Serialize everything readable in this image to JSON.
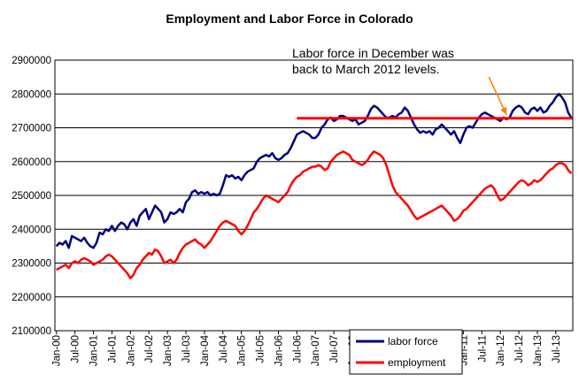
{
  "chart_data": {
    "type": "line",
    "title": "Employment and Labor Force in Colorado",
    "xlabel": "",
    "ylabel": "",
    "ylim": [
      2100000,
      2900000
    ],
    "yticks": [
      2100000,
      2200000,
      2300000,
      2400000,
      2500000,
      2600000,
      2700000,
      2800000,
      2900000
    ],
    "ytick_labels": [
      "2100000",
      "2200000",
      "2300000",
      "2400000",
      "2500000",
      "2600000",
      "2700000",
      "2800000",
      "2900000"
    ],
    "x_start": "Jan-00",
    "x_end": "Dec-13",
    "xtick_labels": [
      "Jan-00",
      "Jul-00",
      "Jan-01",
      "Jul-01",
      "Jan-02",
      "Jul-02",
      "Jan-03",
      "Jul-03",
      "Jan-04",
      "Jul-04",
      "Jan-05",
      "Jul-05",
      "Jan-06",
      "Jul-06",
      "Jan-07",
      "Jul-07",
      "Jan-08",
      "Jul-08",
      "Jan-09",
      "Jul-09",
      "Jan-10",
      "Jul-10",
      "Jan-11",
      "Jul-11",
      "Jan-12",
      "Jul-12",
      "Jan-13",
      "Jul-13"
    ],
    "grid": "horizontal",
    "legend_position": "bottom-right",
    "colors": {
      "labor_force": "#000080",
      "employment": "#ff0000",
      "reference": "#ff0000",
      "arrow": "#ff8000"
    },
    "series": [
      {
        "name": "labor force",
        "color": "#000080",
        "values": [
          [
            2000,
            2350000,
            2360000,
            2355000,
            2365000,
            2345000,
            2380000,
            2375000,
            2370000,
            2365000,
            2375000,
            2360000,
            2350000
          ],
          [
            2001,
            2345000,
            2360000,
            2390000,
            2385000,
            2400000,
            2395000,
            2410000,
            2395000,
            2410000,
            2420000,
            2415000,
            2400000
          ],
          [
            2002,
            2420000,
            2430000,
            2410000,
            2440000,
            2450000,
            2460000,
            2430000,
            2450000,
            2470000,
            2460000,
            2450000,
            2420000
          ],
          [
            2003,
            2430000,
            2450000,
            2445000,
            2450000,
            2460000,
            2450000,
            2480000,
            2490000,
            2510000,
            2515000,
            2505000,
            2510000
          ],
          [
            2004,
            2505000,
            2510000,
            2500000,
            2505000,
            2500000,
            2505000,
            2530000,
            2560000,
            2555000,
            2560000,
            2550000,
            2555000
          ],
          [
            2005,
            2545000,
            2560000,
            2570000,
            2575000,
            2580000,
            2600000,
            2610000,
            2615000,
            2620000,
            2615000,
            2625000,
            2610000
          ],
          [
            2006,
            2605000,
            2610000,
            2620000,
            2625000,
            2640000,
            2660000,
            2680000,
            2685000,
            2690000,
            2685000,
            2680000,
            2670000
          ],
          [
            2007,
            2670000,
            2680000,
            2700000,
            2710000,
            2725000,
            2730000,
            2720000,
            2725000,
            2735000,
            2735000,
            2730000,
            2725000
          ],
          [
            2008,
            2720000,
            2725000,
            2710000,
            2715000,
            2720000,
            2735000,
            2755000,
            2765000,
            2760000,
            2750000,
            2740000,
            2730000
          ],
          [
            2009,
            2730000,
            2735000,
            2730000,
            2740000,
            2745000,
            2760000,
            2750000,
            2730000,
            2710000,
            2695000,
            2685000,
            2690000
          ],
          [
            2010,
            2685000,
            2690000,
            2680000,
            2695000,
            2700000,
            2710000,
            2700000,
            2690000,
            2680000,
            2690000,
            2670000,
            2655000
          ],
          [
            2011,
            2680000,
            2700000,
            2705000,
            2700000,
            2715000,
            2730000,
            2740000,
            2745000,
            2740000,
            2735000,
            2730000,
            2725000
          ],
          [
            2012,
            2720000,
            2730000,
            2725000,
            2730000,
            2750000,
            2760000,
            2765000,
            2760000,
            2745000,
            2740000,
            2755000,
            2760000
          ],
          [
            2013,
            2750000,
            2760000,
            2745000,
            2750000,
            2765000,
            2775000,
            2790000,
            2800000,
            2790000,
            2775000,
            2745000,
            2730000
          ]
        ]
      },
      {
        "name": "employment",
        "color": "#ff0000",
        "values": [
          [
            2000,
            2280000,
            2285000,
            2290000,
            2295000,
            2285000,
            2300000,
            2305000,
            2300000,
            2310000,
            2315000,
            2310000,
            2305000
          ],
          [
            2001,
            2295000,
            2300000,
            2305000,
            2310000,
            2320000,
            2325000,
            2320000,
            2310000,
            2300000,
            2290000,
            2280000,
            2270000
          ],
          [
            2002,
            2255000,
            2265000,
            2285000,
            2295000,
            2310000,
            2320000,
            2330000,
            2325000,
            2340000,
            2335000,
            2320000,
            2300000
          ],
          [
            2003,
            2305000,
            2310000,
            2300000,
            2310000,
            2330000,
            2345000,
            2355000,
            2360000,
            2365000,
            2370000,
            2360000,
            2355000
          ],
          [
            2004,
            2345000,
            2355000,
            2365000,
            2380000,
            2395000,
            2410000,
            2420000,
            2425000,
            2420000,
            2415000,
            2410000,
            2395000
          ],
          [
            2005,
            2385000,
            2395000,
            2410000,
            2430000,
            2450000,
            2460000,
            2475000,
            2490000,
            2500000,
            2495000,
            2490000,
            2485000
          ],
          [
            2006,
            2480000,
            2490000,
            2500000,
            2510000,
            2530000,
            2545000,
            2555000,
            2560000,
            2570000,
            2575000,
            2580000,
            2585000
          ],
          [
            2007,
            2585000,
            2590000,
            2585000,
            2575000,
            2580000,
            2600000,
            2610000,
            2620000,
            2625000,
            2630000,
            2625000,
            2620000
          ],
          [
            2008,
            2605000,
            2600000,
            2595000,
            2590000,
            2595000,
            2605000,
            2620000,
            2630000,
            2625000,
            2620000,
            2610000,
            2590000
          ],
          [
            2009,
            2560000,
            2530000,
            2510000,
            2500000,
            2490000,
            2480000,
            2470000,
            2455000,
            2440000,
            2430000,
            2435000,
            2440000
          ],
          [
            2010,
            2445000,
            2450000,
            2455000,
            2460000,
            2465000,
            2470000,
            2460000,
            2450000,
            2440000,
            2425000,
            2430000,
            2440000
          ],
          [
            2011,
            2455000,
            2460000,
            2470000,
            2480000,
            2490000,
            2500000,
            2510000,
            2520000,
            2525000,
            2530000,
            2520000,
            2500000
          ],
          [
            2012,
            2485000,
            2490000,
            2500000,
            2510000,
            2520000,
            2530000,
            2540000,
            2545000,
            2540000,
            2530000,
            2535000,
            2545000
          ],
          [
            2013,
            2540000,
            2545000,
            2555000,
            2565000,
            2575000,
            2580000,
            2590000,
            2595000,
            2595000,
            2590000,
            2575000,
            2565000
          ]
        ]
      }
    ],
    "reference_line": {
      "value": 2728000,
      "from": "Jul-06",
      "to": "Dec-13"
    },
    "annotation": {
      "lines": [
        "Labor force in December was",
        "back to March 2012 levels."
      ],
      "arrow_from": "Jan-12",
      "arrow_to": "Mar-12"
    }
  }
}
